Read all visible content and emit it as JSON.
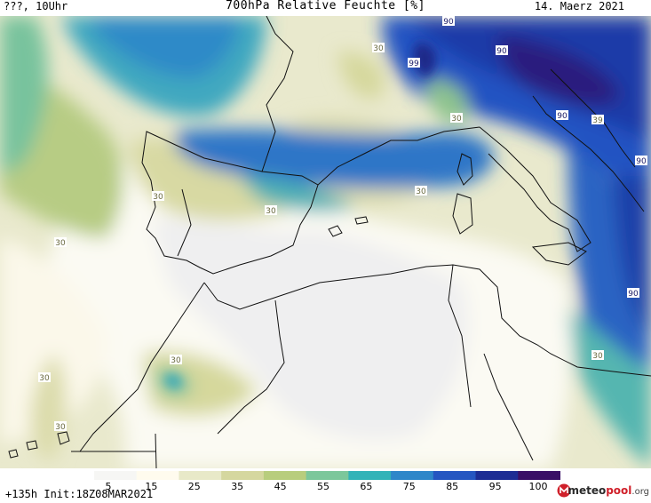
{
  "header": {
    "left": "???, 10Uhr",
    "title": "700hPa Relative Feuchte [%]",
    "date": "14. Maerz 2021"
  },
  "footer": {
    "run_info": "+135h Init:18Z08MAR2021",
    "brand_main": "meteo",
    "brand_pool": "pool",
    "brand_tld": ".org"
  },
  "legend": {
    "ticks": [
      "5",
      "15",
      "25",
      "35",
      "45",
      "55",
      "65",
      "75",
      "85",
      "95",
      "100"
    ],
    "colors": [
      "#f6f6f4",
      "#fffbee",
      "#e8e9c8",
      "#d5d79f",
      "#b8cd7d",
      "#7cc79b",
      "#33b3b8",
      "#2f87c9",
      "#2556c1",
      "#1d2d94",
      "#3a1066"
    ]
  },
  "contour_labels": [
    {
      "value": "90"
    },
    {
      "value": "90"
    },
    {
      "value": "99"
    },
    {
      "value": "30"
    },
    {
      "value": "30"
    },
    {
      "value": "90"
    },
    {
      "value": "39"
    },
    {
      "value": "90"
    },
    {
      "value": "30"
    },
    {
      "value": "30"
    },
    {
      "value": "30"
    },
    {
      "value": "30"
    },
    {
      "value": "30"
    },
    {
      "value": "30"
    },
    {
      "value": "90"
    },
    {
      "value": "30"
    },
    {
      "value": "30"
    }
  ]
}
